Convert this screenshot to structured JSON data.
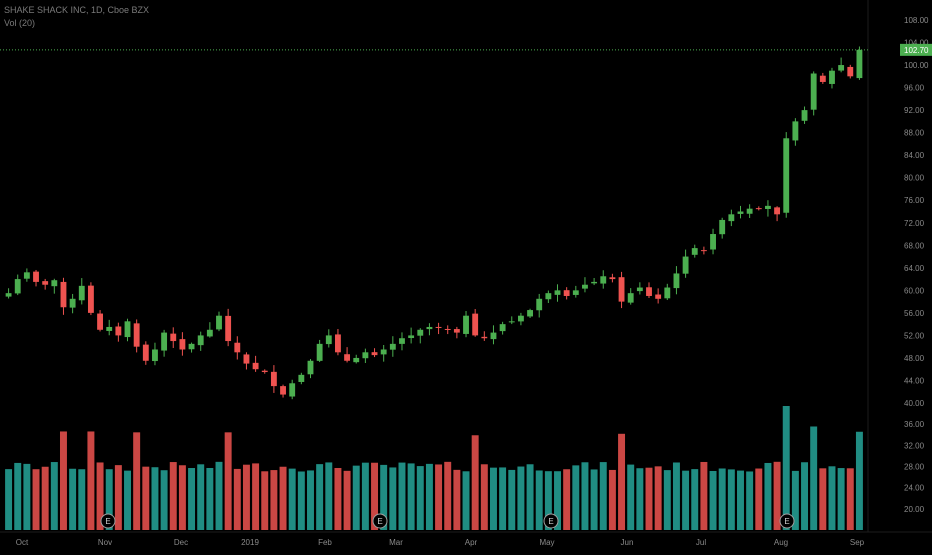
{
  "header": {
    "symbol_line": "SHAKE SHACK INC, 1D, Cboe BZX",
    "volume_label": "Vol (20)"
  },
  "colors": {
    "background": "#000000",
    "up": "#4caf50",
    "down": "#ef5350",
    "volume_up": "#26a69a",
    "volume_down": "#ef5350",
    "price_line": "#4caf50",
    "axis_text": "#8a8a8a",
    "earnings_marker": "#000000"
  },
  "chart_data": {
    "type": "candlestick",
    "title": "SHAKE SHACK INC, 1D, Cboe BZX",
    "ylabel": "",
    "price_axis": {
      "ticks": [
        "108.00",
        "104.00",
        "100.00",
        "96.00",
        "92.00",
        "88.00",
        "84.00",
        "80.00",
        "76.00",
        "72.00",
        "68.00",
        "64.00",
        "60.00",
        "56.00",
        "52.00",
        "48.00",
        "44.00",
        "40.00"
      ],
      "range": [
        38.5,
        110
      ]
    },
    "volume_axis": {
      "ticks": [
        "36.00",
        "32.00",
        "28.00",
        "24.00",
        "20.00"
      ],
      "unit_note": "scale of volume pane"
    },
    "time_axis": {
      "labels": [
        "Oct",
        "Nov",
        "Dec",
        "2019",
        "Feb",
        "Mar",
        "Apr",
        "May",
        "Jun",
        "Jul",
        "Aug",
        "Sep"
      ]
    },
    "last_price": {
      "value": 102.7,
      "label": "102.70"
    },
    "earnings_markers": [
      {
        "label": "E",
        "month": "Nov"
      },
      {
        "label": "E",
        "month": "Mar"
      },
      {
        "label": "E",
        "month": "May"
      },
      {
        "label": "E",
        "month": "Aug"
      }
    ],
    "price_series": [
      {
        "x": "Oct",
        "y": 59.5
      },
      {
        "x": "Oct",
        "y": 62.0
      },
      {
        "x": "Oct",
        "y": 63.2
      },
      {
        "x": "Oct",
        "y": 61.5
      },
      {
        "x": "Oct",
        "y": 61.0
      },
      {
        "x": "Oct",
        "y": 61.8
      },
      {
        "x": "Oct",
        "y": 57.0
      },
      {
        "x": "Oct",
        "y": 58.5
      },
      {
        "x": "Oct",
        "y": 60.8
      },
      {
        "x": "Oct",
        "y": 56.0
      },
      {
        "x": "Oct",
        "y": 53.0
      },
      {
        "x": "Nov",
        "y": 53.5
      },
      {
        "x": "Nov",
        "y": 52.0
      },
      {
        "x": "Nov",
        "y": 54.5
      },
      {
        "x": "Nov",
        "y": 50.0
      },
      {
        "x": "Nov",
        "y": 47.5
      },
      {
        "x": "Nov",
        "y": 49.5
      },
      {
        "x": "Nov",
        "y": 52.5
      },
      {
        "x": "Nov",
        "y": 51.0
      },
      {
        "x": "Nov",
        "y": 49.5
      },
      {
        "x": "Nov",
        "y": 50.5
      },
      {
        "x": "Nov",
        "y": 52.0
      },
      {
        "x": "Dec",
        "y": 53.0
      },
      {
        "x": "Dec",
        "y": 55.5
      },
      {
        "x": "Dec",
        "y": 51.0
      },
      {
        "x": "Dec",
        "y": 49.0
      },
      {
        "x": "Dec",
        "y": 47.0
      },
      {
        "x": "Dec",
        "y": 46.0
      },
      {
        "x": "Dec",
        "y": 45.5
      },
      {
        "x": "Dec",
        "y": 43.0
      },
      {
        "x": "Dec",
        "y": 41.5
      },
      {
        "x": "Dec",
        "y": 43.5
      },
      {
        "x": "Dec",
        "y": 45.0
      },
      {
        "x": "2019",
        "y": 47.5
      },
      {
        "x": "2019",
        "y": 50.5
      },
      {
        "x": "2019",
        "y": 52.0
      },
      {
        "x": "2019",
        "y": 49.0
      },
      {
        "x": "2019",
        "y": 47.5
      },
      {
        "x": "2019",
        "y": 48.0
      },
      {
        "x": "2019",
        "y": 49.0
      },
      {
        "x": "2019",
        "y": 48.5
      },
      {
        "x": "2019",
        "y": 49.5
      },
      {
        "x": "2019",
        "y": 50.5
      },
      {
        "x": "2019",
        "y": 51.5
      },
      {
        "x": "Feb",
        "y": 52.0
      },
      {
        "x": "Feb",
        "y": 53.0
      },
      {
        "x": "Feb",
        "y": 53.5
      },
      {
        "x": "Feb",
        "y": 53.5
      },
      {
        "x": "Feb",
        "y": 53.0
      },
      {
        "x": "Feb",
        "y": 52.5
      },
      {
        "x": "Mar",
        "y": 55.5
      },
      {
        "x": "Mar",
        "y": 52.0
      },
      {
        "x": "Mar",
        "y": 51.5
      },
      {
        "x": "Mar",
        "y": 52.5
      },
      {
        "x": "Mar",
        "y": 54.0
      },
      {
        "x": "Mar",
        "y": 54.5
      },
      {
        "x": "Apr",
        "y": 55.5
      },
      {
        "x": "Apr",
        "y": 56.5
      },
      {
        "x": "Apr",
        "y": 58.5
      },
      {
        "x": "Apr",
        "y": 59.5
      },
      {
        "x": "Apr",
        "y": 60.0
      },
      {
        "x": "Apr",
        "y": 59.0
      },
      {
        "x": "Apr",
        "y": 60.0
      },
      {
        "x": "Apr",
        "y": 61.0
      },
      {
        "x": "Apr",
        "y": 61.5
      },
      {
        "x": "Apr",
        "y": 62.5
      },
      {
        "x": "May",
        "y": 62.0
      },
      {
        "x": "May",
        "y": 58.0
      },
      {
        "x": "May",
        "y": 59.5
      },
      {
        "x": "May",
        "y": 60.5
      },
      {
        "x": "May",
        "y": 59.0
      },
      {
        "x": "May",
        "y": 58.5
      },
      {
        "x": "Jun",
        "y": 60.5
      },
      {
        "x": "Jun",
        "y": 63.0
      },
      {
        "x": "Jun",
        "y": 66.0
      },
      {
        "x": "Jun",
        "y": 67.5
      },
      {
        "x": "Jun",
        "y": 67.0
      },
      {
        "x": "Jun",
        "y": 70.0
      },
      {
        "x": "Jul",
        "y": 72.5
      },
      {
        "x": "Jul",
        "y": 73.5
      },
      {
        "x": "Jul",
        "y": 74.0
      },
      {
        "x": "Jul",
        "y": 74.5
      },
      {
        "x": "Jul",
        "y": 74.5
      },
      {
        "x": "Jul",
        "y": 75.0
      },
      {
        "x": "Aug",
        "y": 73.5
      },
      {
        "x": "Aug",
        "y": 87.0
      },
      {
        "x": "Aug",
        "y": 90.0
      },
      {
        "x": "Aug",
        "y": 92.0
      },
      {
        "x": "Aug",
        "y": 98.5
      },
      {
        "x": "Aug",
        "y": 97.0
      },
      {
        "x": "Sep",
        "y": 99.0
      },
      {
        "x": "Sep",
        "y": 100.0
      },
      {
        "x": "Sep",
        "y": 98.0
      },
      {
        "x": "Sep",
        "y": 102.7
      }
    ]
  }
}
